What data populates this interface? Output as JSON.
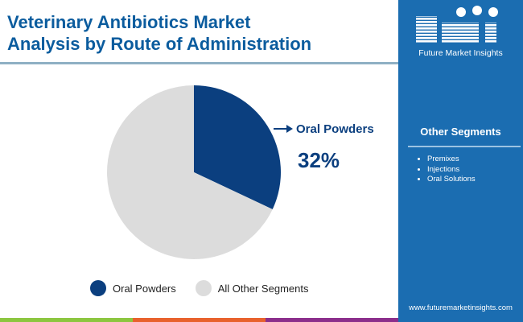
{
  "title_line1": "Veterinary Antibiotics Market",
  "title_line2": "Analysis by Route of Administration",
  "chart_data": {
    "type": "pie",
    "categories": [
      "Oral Powders",
      "All Other Segments"
    ],
    "values": [
      32,
      68
    ],
    "colors": [
      "#0b3f7f",
      "#dcdcdc"
    ],
    "start": "top, clockwise",
    "legend_position": "bottom",
    "callout": {
      "label": "Oral Powders",
      "value": "32%"
    }
  },
  "sidebar": {
    "brand": "Future Market Insights",
    "logo_text": "fmi",
    "other_segments_title": "Other Segments",
    "other_segments": [
      "Premixes",
      "Injections",
      "Oral Solutions"
    ],
    "url": "www.futuremarketinsights.com",
    "bg_color": "#1b6db1"
  },
  "stripe_colors": [
    "#8cc63f",
    "#e8612c",
    "#8b2e8b"
  ]
}
